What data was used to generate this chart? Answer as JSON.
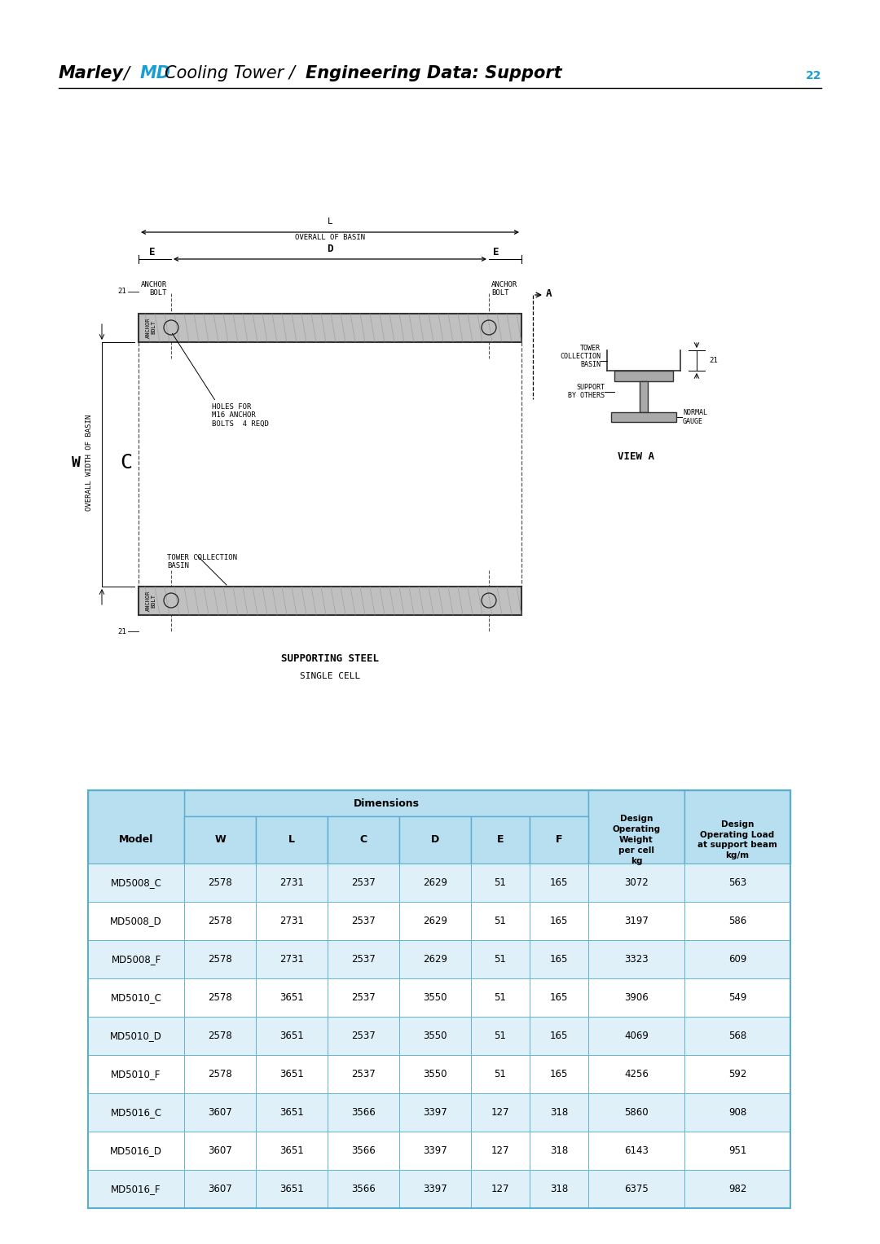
{
  "title_parts": [
    {
      "text": "Marley",
      "style": "bolditalic",
      "color": "#000000"
    },
    {
      "text": " / ",
      "style": "italic",
      "color": "#000000"
    },
    {
      "text": "MD",
      "style": "bolditalic",
      "color": "#1a9fd4"
    },
    {
      "text": " Cooling Tower / ",
      "style": "italic",
      "color": "#000000"
    },
    {
      "text": "Engineering Data: Support",
      "style": "bolditalic",
      "color": "#000000"
    }
  ],
  "page_number": "22",
  "page_number_color": "#1a9fd4",
  "background_color": "#ffffff",
  "table_header_bg": "#b8dff0",
  "table_row_bg_even": "#dff0f8",
  "table_row_bg_odd": "#ffffff",
  "table_border_color": "#5aaed0",
  "table_data": {
    "models": [
      "MD5008_C",
      "MD5008_D",
      "MD5008_F",
      "MD5010_C",
      "MD5010_D",
      "MD5010_F",
      "MD5016_C",
      "MD5016_D",
      "MD5016_F"
    ],
    "W": [
      2578,
      2578,
      2578,
      2578,
      2578,
      2578,
      3607,
      3607,
      3607
    ],
    "L": [
      2731,
      2731,
      2731,
      3651,
      3651,
      3651,
      3651,
      3651,
      3651
    ],
    "C": [
      2537,
      2537,
      2537,
      2537,
      2537,
      2537,
      3566,
      3566,
      3566
    ],
    "D": [
      2629,
      2629,
      2629,
      3550,
      3550,
      3550,
      3397,
      3397,
      3397
    ],
    "E": [
      51,
      51,
      51,
      51,
      51,
      51,
      127,
      127,
      127
    ],
    "F": [
      165,
      165,
      165,
      165,
      165,
      165,
      318,
      318,
      318
    ],
    "weight": [
      3072,
      3197,
      3323,
      3906,
      4069,
      4256,
      5860,
      6143,
      6375
    ],
    "load": [
      563,
      586,
      609,
      549,
      568,
      592,
      908,
      951,
      982
    ]
  }
}
